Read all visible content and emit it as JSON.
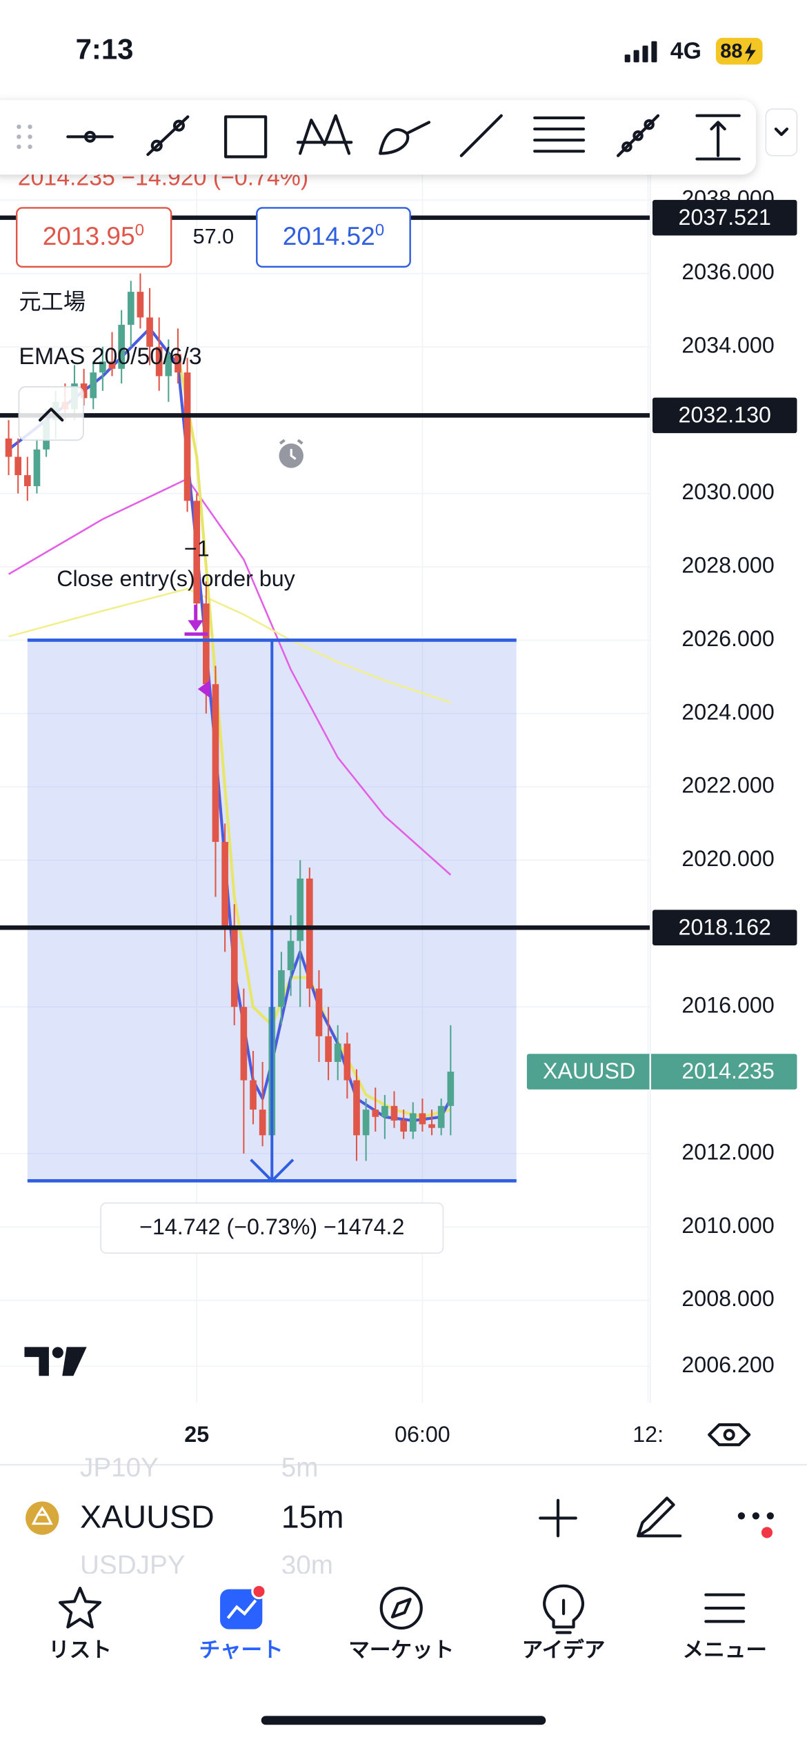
{
  "status_bar": {
    "time": "7:13",
    "network": "4G",
    "battery": "88"
  },
  "chart_data": {
    "type": "candlestick",
    "header_quote": "2014.235 −14.920 (−0.74%)",
    "bid": [
      "2013.95",
      "0"
    ],
    "spread": "57.0",
    "ask": [
      "2014.52",
      "0"
    ],
    "source_label": "元工場",
    "legend": "EMAS 200/50/6/3",
    "ylim": [
      2005.2,
      2038.9
    ],
    "yticks": [
      {
        "value": 2038,
        "label": "2038.000"
      },
      {
        "value": 2036,
        "label": "2036.000"
      },
      {
        "value": 2034,
        "label": "2034.000"
      },
      {
        "value": 2030,
        "label": "2030.000"
      },
      {
        "value": 2028,
        "label": "2028.000"
      },
      {
        "value": 2026,
        "label": "2026.000"
      },
      {
        "value": 2024,
        "label": "2024.000"
      },
      {
        "value": 2022,
        "label": "2022.000"
      },
      {
        "value": 2020,
        "label": "2020.000"
      },
      {
        "value": 2016,
        "label": "2016.000"
      },
      {
        "value": 2012,
        "label": "2012.000"
      },
      {
        "value": 2010,
        "label": "2010.000"
      },
      {
        "value": 2008,
        "label": "2008.000"
      },
      {
        "value": 2006.2,
        "label": "2006.200"
      }
    ],
    "xlim": [
      -0.92,
      68.23
    ],
    "xticks": [
      {
        "value": 20,
        "label": "25"
      },
      {
        "value": 44,
        "label": "06:00"
      },
      {
        "value": 68,
        "label": "12:"
      }
    ],
    "up_color": "#4fa58f",
    "down_color": "#e0574a",
    "candles": [
      [
        2031.5,
        2032,
        2030.5,
        2031
      ],
      [
        2031,
        2031.5,
        2030,
        2030.5
      ],
      [
        2030.5,
        2031,
        2029.8,
        2030.2
      ],
      [
        2030.2,
        2031.5,
        2030,
        2031.2
      ],
      [
        2031.2,
        2032.3,
        2031,
        2032
      ],
      [
        2032,
        2032.8,
        2031.5,
        2032.5
      ],
      [
        2032.5,
        2033,
        2032,
        2032.3
      ],
      [
        2032.3,
        2033.5,
        2032,
        2033
      ],
      [
        2033,
        2033.4,
        2032.4,
        2032.6
      ],
      [
        2032.6,
        2033.6,
        2032.3,
        2033.3
      ],
      [
        2033.3,
        2034,
        2032.8,
        2033.6
      ],
      [
        2033.6,
        2034.4,
        2033.2,
        2033.4
      ],
      [
        2033.4,
        2035,
        2033,
        2034.6
      ],
      [
        2034.6,
        2035.8,
        2034,
        2035.5
      ],
      [
        2035.5,
        2036,
        2034.5,
        2034.8
      ],
      [
        2034.8,
        2035.6,
        2033.5,
        2034
      ],
      [
        2034,
        2034.8,
        2032.8,
        2033.2
      ],
      [
        2033.2,
        2034.2,
        2032.5,
        2033.8
      ],
      [
        2033.8,
        2034.5,
        2033,
        2033.3
      ],
      [
        2033.3,
        2033.7,
        2029.5,
        2029.8
      ],
      [
        2029.8,
        2030,
        2026.5,
        2027
      ],
      [
        2027,
        2027.6,
        2024,
        2024.8
      ],
      [
        2024.8,
        2025.3,
        2019,
        2020.5
      ],
      [
        2020.5,
        2021,
        2017.5,
        2018.2
      ],
      [
        2018.2,
        2018.8,
        2015.5,
        2016
      ],
      [
        2016,
        2016.5,
        2012,
        2014
      ],
      [
        2014,
        2014.8,
        2012.8,
        2013.2
      ],
      [
        2013.2,
        2014.5,
        2012.2,
        2012.5
      ],
      [
        2012.5,
        2016.5,
        2012,
        2016
      ],
      [
        2016,
        2017.5,
        2015.5,
        2017
      ],
      [
        2017,
        2018.5,
        2016.3,
        2017.8
      ],
      [
        2017.8,
        2020,
        2016,
        2019.5
      ],
      [
        2019.5,
        2019.8,
        2016,
        2016.5
      ],
      [
        2016.5,
        2017,
        2014.5,
        2015.2
      ],
      [
        2015.2,
        2016,
        2014,
        2014.5
      ],
      [
        2014.5,
        2015.5,
        2014,
        2015
      ],
      [
        2015,
        2015.3,
        2013.5,
        2014
      ],
      [
        2014,
        2014.3,
        2011.8,
        2012.5
      ],
      [
        2012.5,
        2013.5,
        2011.8,
        2013.2
      ],
      [
        2013.2,
        2013.8,
        2012.6,
        2013
      ],
      [
        2013,
        2013.6,
        2012.4,
        2013.3
      ],
      [
        2013.3,
        2013.7,
        2012.7,
        2012.9
      ],
      [
        2012.9,
        2013.2,
        2012.4,
        2012.6
      ],
      [
        2012.6,
        2013.4,
        2012.4,
        2013.1
      ],
      [
        2013.1,
        2013.5,
        2012.6,
        2012.8
      ],
      [
        2012.8,
        2013.2,
        2012.5,
        2012.7
      ],
      [
        2012.7,
        2013.5,
        2012.5,
        2013.3
      ],
      [
        2013.3,
        2015.5,
        2012.5,
        2014.235
      ]
    ],
    "series": [
      {
        "color": "#e35fe6",
        "x": [
          0,
          10,
          19,
          25,
          30,
          35,
          40,
          47
        ],
        "values": [
          2027.8,
          2029.3,
          2030.4,
          2028.2,
          2025.2,
          2022.8,
          2021.2,
          2019.6
        ]
      },
      {
        "color": "#f0ef8c",
        "x": [
          0,
          10,
          19,
          25,
          30,
          35,
          40,
          47
        ],
        "values": [
          2026.1,
          2026.8,
          2027.4,
          2026.7,
          2026,
          2025.4,
          2024.9,
          2024.3
        ]
      },
      {
        "color": "#e7e66a",
        "x": [
          18,
          20,
          22,
          24,
          26,
          28,
          30,
          32,
          34,
          36,
          38,
          41,
          44,
          47
        ],
        "values": [
          2033.8,
          2031,
          2025,
          2019,
          2016,
          2015.5,
          2016.8,
          2016.8,
          2015.5,
          2014.6,
          2013.6,
          2013.2,
          2013,
          2013.2
        ]
      },
      {
        "color": "#4a5be0",
        "x": [
          0,
          5,
          10,
          15,
          18,
          20,
          22,
          24,
          26,
          27,
          28,
          30,
          31,
          33,
          35,
          37,
          40,
          43,
          46,
          47
        ],
        "values": [
          2031.2,
          2032.2,
          2033.2,
          2034.5,
          2033.5,
          2028.5,
          2023,
          2017,
          2014,
          2013.5,
          2014.5,
          2016.8,
          2017.5,
          2016,
          2015,
          2013.5,
          2013,
          2012.9,
          2013,
          2013.5
        ]
      }
    ],
    "hlines": [
      2037.521,
      {
        "value": 2032.13,
        "label": "2032.130"
      },
      2018.162
    ],
    "current_price": {
      "symbol": "XAUUSD",
      "value": 2014.235
    },
    "position": {
      "entry": 2026,
      "stop": 2011.258,
      "x_range": [
        2,
        54
      ],
      "label": "−14.742 (−0.73%) −1474.2"
    },
    "order_qty": "−1",
    "order_label": "Close entry(s) order buy"
  },
  "symbol_bar": {
    "symbol": "XAUUSD",
    "interval": "15m",
    "prev_symbol": "JP10Y",
    "prev_interval": "5m",
    "next_symbol": "USDJPY",
    "next_interval": "30m"
  },
  "tab_bar": {
    "tabs": [
      "リスト",
      "チャート",
      "マーケット",
      "アイデア",
      "メニュー"
    ]
  }
}
